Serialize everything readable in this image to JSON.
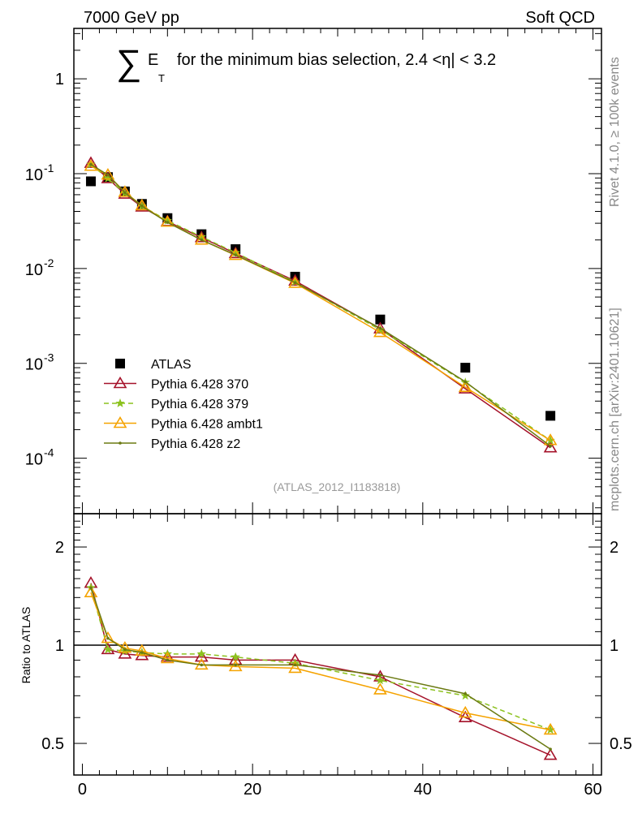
{
  "header": {
    "left": "7000 GeV pp",
    "right": "Soft QCD"
  },
  "side_labels": {
    "rivet": "Rivet 4.1.0, ≥ 100k events",
    "mcplots": "mcplots.cern.ch [arXiv:2401.10621]"
  },
  "chart_data": [
    {
      "type": "scatter",
      "title_sum_symbol": "∑",
      "title_E": "E",
      "title_T": "T",
      "title_rest": "for the minimum bias selection, 2.4 <η| < 3.2",
      "analysis_id": "(ATLAS_2012_I1183818)",
      "yscale": "log",
      "ylim": [
        2.6e-05,
        3.4
      ],
      "xlim": [
        -1,
        61
      ],
      "ytick_labels": [
        "1",
        "10^-1",
        "10^-2",
        "10^-3",
        "10^-4"
      ],
      "yticks": [
        1,
        0.1,
        0.01,
        0.001,
        0.0001
      ],
      "legend_position": "bottom-left",
      "x": [
        1,
        3,
        5,
        7,
        10,
        14,
        18,
        25,
        35,
        45,
        55
      ],
      "series": [
        {
          "name": "ATLAS",
          "color": "#000000",
          "marker": "square",
          "values": [
            0.083,
            0.092,
            0.065,
            0.048,
            0.034,
            0.023,
            0.016,
            0.0082,
            0.0029,
            0.0009,
            0.00028
          ]
        },
        {
          "name": "Pythia 6.428 370",
          "color": "#a5122a",
          "marker": "triangle-open",
          "dash": false,
          "values": [
            0.129,
            0.089,
            0.061,
            0.0446,
            0.0313,
            0.0212,
            0.0144,
            0.0074,
            0.00232,
            0.00054,
            0.000129
          ]
        },
        {
          "name": "Pythia 6.428 379",
          "color": "#8cc21e",
          "marker": "star",
          "dash": true,
          "values": [
            0.125,
            0.089,
            0.0624,
            0.0456,
            0.032,
            0.0216,
            0.0147,
            0.0072,
            0.00226,
            0.00063,
            0.000154
          ]
        },
        {
          "name": "Pythia 6.428 ambt1",
          "color": "#f5a300",
          "marker": "triangle-open",
          "dash": false,
          "values": [
            0.12,
            0.097,
            0.0637,
            0.0461,
            0.0309,
            0.02,
            0.0138,
            0.007,
            0.00212,
            0.00056,
            0.000154
          ]
        },
        {
          "name": "Pythia 6.428 z2",
          "color": "#6b7a12",
          "marker": "dot",
          "dash": false,
          "values": [
            0.125,
            0.097,
            0.063,
            0.0456,
            0.0306,
            0.02,
            0.0139,
            0.0071,
            0.00235,
            0.00064,
            0.000134
          ]
        }
      ]
    },
    {
      "type": "line",
      "ylabel": "Ratio to ATLAS",
      "yscale": "log2",
      "ylim": [
        0.4,
        2.53
      ],
      "yticks": [
        0.5,
        1,
        2
      ],
      "ytick_labels": [
        "0.5",
        "1",
        "2"
      ],
      "xticks": [
        0,
        20,
        40,
        60
      ],
      "xtick_labels": [
        "0",
        "20",
        "40",
        "60"
      ],
      "xlim": [
        -1,
        61
      ],
      "x": [
        1,
        3,
        5,
        7,
        10,
        14,
        18,
        25,
        35,
        45,
        55
      ],
      "series": [
        {
          "name": "Pythia 6.428 370",
          "values": [
            1.55,
            0.97,
            0.94,
            0.93,
            0.92,
            0.92,
            0.9,
            0.9,
            0.8,
            0.6,
            0.46
          ]
        },
        {
          "name": "Pythia 6.428 379",
          "values": [
            1.5,
            0.97,
            0.96,
            0.95,
            0.94,
            0.94,
            0.92,
            0.88,
            0.78,
            0.7,
            0.55
          ]
        },
        {
          "name": "Pythia 6.428 ambt1",
          "values": [
            1.45,
            1.05,
            0.98,
            0.96,
            0.91,
            0.87,
            0.86,
            0.85,
            0.73,
            0.62,
            0.55
          ]
        },
        {
          "name": "Pythia 6.428 z2",
          "values": [
            1.5,
            1.05,
            0.97,
            0.95,
            0.9,
            0.87,
            0.87,
            0.87,
            0.81,
            0.71,
            0.48
          ]
        }
      ]
    }
  ]
}
